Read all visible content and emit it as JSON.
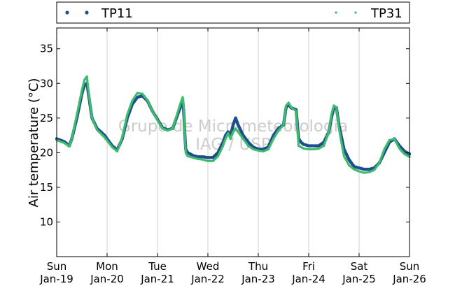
{
  "chart_data": {
    "type": "scatter",
    "title": "",
    "xlabel": "",
    "ylabel": "Air temperature (°C)",
    "ylim": [
      5,
      38
    ],
    "xlim_days": [
      0,
      7
    ],
    "yticks": [
      10,
      15,
      20,
      25,
      30,
      35
    ],
    "xticks": [
      {
        "day": "Sun",
        "date": "Jan-19"
      },
      {
        "day": "Mon",
        "date": "Jan-20"
      },
      {
        "day": "Tue",
        "date": "Jan-21"
      },
      {
        "day": "Wed",
        "date": "Jan-22"
      },
      {
        "day": "Thu",
        "date": "Jan-23"
      },
      {
        "day": "Fri",
        "date": "Jan-24"
      },
      {
        "day": "Sat",
        "date": "Jan-25"
      },
      {
        "day": "Sun",
        "date": "Jan-26"
      }
    ],
    "grid": "vertical",
    "legend_position": "top, above plot",
    "watermark": [
      "Grupo de Micrometeorologia",
      "IAG / USP"
    ],
    "series": [
      {
        "name": "TP11",
        "color": "#1f4e8c",
        "points": [
          [
            0.0,
            22.0
          ],
          [
            0.15,
            21.6
          ],
          [
            0.25,
            21.0
          ],
          [
            0.3,
            22.0
          ],
          [
            0.4,
            25.0
          ],
          [
            0.5,
            28.5
          ],
          [
            0.55,
            29.8
          ],
          [
            0.6,
            30.0
          ],
          [
            0.62,
            29.0
          ],
          [
            0.7,
            25.0
          ],
          [
            0.8,
            23.5
          ],
          [
            0.95,
            22.5
          ],
          [
            1.1,
            21.0
          ],
          [
            1.2,
            20.4
          ],
          [
            1.3,
            22.0
          ],
          [
            1.4,
            25.0
          ],
          [
            1.5,
            27.0
          ],
          [
            1.6,
            28.0
          ],
          [
            1.7,
            28.2
          ],
          [
            1.8,
            27.5
          ],
          [
            1.9,
            26.0
          ],
          [
            2.0,
            24.8
          ],
          [
            2.1,
            23.6
          ],
          [
            2.2,
            23.3
          ],
          [
            2.3,
            23.5
          ],
          [
            2.4,
            25.5
          ],
          [
            2.45,
            26.5
          ],
          [
            2.5,
            27.5
          ],
          [
            2.52,
            26.0
          ],
          [
            2.54,
            23.0
          ],
          [
            2.56,
            20.5
          ],
          [
            2.6,
            20.0
          ],
          [
            2.7,
            19.6
          ],
          [
            2.8,
            19.4
          ],
          [
            2.9,
            19.4
          ],
          [
            3.0,
            19.3
          ],
          [
            3.1,
            19.3
          ],
          [
            3.2,
            20.0
          ],
          [
            3.3,
            21.5
          ],
          [
            3.35,
            22.5
          ],
          [
            3.4,
            23.0
          ],
          [
            3.45,
            22.5
          ],
          [
            3.5,
            24.0
          ],
          [
            3.55,
            25.0
          ],
          [
            3.6,
            24.0
          ],
          [
            3.7,
            22.5
          ],
          [
            3.8,
            21.5
          ],
          [
            3.9,
            20.8
          ],
          [
            4.0,
            20.5
          ],
          [
            4.1,
            20.5
          ],
          [
            4.2,
            20.8
          ],
          [
            4.3,
            22.5
          ],
          [
            4.4,
            23.5
          ],
          [
            4.5,
            24.0
          ],
          [
            4.55,
            26.5
          ],
          [
            4.6,
            27.0
          ],
          [
            4.65,
            26.5
          ],
          [
            4.75,
            26.2
          ],
          [
            4.77,
            24.5
          ],
          [
            4.8,
            22.0
          ],
          [
            4.85,
            21.5
          ],
          [
            4.9,
            21.2
          ],
          [
            5.0,
            21.0
          ],
          [
            5.1,
            21.0
          ],
          [
            5.2,
            21.0
          ],
          [
            5.3,
            21.5
          ],
          [
            5.4,
            23.0
          ],
          [
            5.45,
            25.0
          ],
          [
            5.5,
            26.5
          ],
          [
            5.55,
            26.5
          ],
          [
            5.6,
            24.0
          ],
          [
            5.7,
            20.5
          ],
          [
            5.8,
            19.0
          ],
          [
            5.9,
            18.0
          ],
          [
            6.0,
            17.8
          ],
          [
            6.1,
            17.6
          ],
          [
            6.2,
            17.6
          ],
          [
            6.3,
            17.8
          ],
          [
            6.4,
            18.5
          ],
          [
            6.5,
            20.0
          ],
          [
            6.6,
            21.5
          ],
          [
            6.7,
            22.0
          ],
          [
            6.8,
            21.0
          ],
          [
            6.9,
            20.2
          ],
          [
            7.0,
            19.8
          ]
        ]
      },
      {
        "name": "TP31",
        "color": "#3dbb6e",
        "points": [
          [
            0.0,
            21.8
          ],
          [
            0.15,
            21.4
          ],
          [
            0.25,
            20.9
          ],
          [
            0.3,
            22.0
          ],
          [
            0.4,
            25.5
          ],
          [
            0.5,
            29.0
          ],
          [
            0.55,
            30.5
          ],
          [
            0.6,
            31.0
          ],
          [
            0.62,
            29.5
          ],
          [
            0.7,
            25.0
          ],
          [
            0.8,
            23.3
          ],
          [
            0.95,
            22.2
          ],
          [
            1.1,
            20.8
          ],
          [
            1.2,
            20.2
          ],
          [
            1.3,
            22.2
          ],
          [
            1.4,
            25.5
          ],
          [
            1.5,
            27.5
          ],
          [
            1.6,
            28.6
          ],
          [
            1.7,
            28.5
          ],
          [
            1.8,
            27.6
          ],
          [
            1.9,
            26.0
          ],
          [
            2.0,
            24.7
          ],
          [
            2.1,
            23.5
          ],
          [
            2.2,
            23.2
          ],
          [
            2.3,
            23.5
          ],
          [
            2.4,
            25.8
          ],
          [
            2.45,
            27.0
          ],
          [
            2.5,
            28.0
          ],
          [
            2.52,
            26.5
          ],
          [
            2.54,
            23.0
          ],
          [
            2.56,
            20.0
          ],
          [
            2.6,
            19.5
          ],
          [
            2.7,
            19.3
          ],
          [
            2.8,
            19.1
          ],
          [
            2.9,
            19.0
          ],
          [
            3.0,
            18.8
          ],
          [
            3.1,
            18.8
          ],
          [
            3.2,
            19.5
          ],
          [
            3.3,
            21.0
          ],
          [
            3.35,
            22.0
          ],
          [
            3.4,
            22.8
          ],
          [
            3.45,
            22.0
          ],
          [
            3.5,
            23.0
          ],
          [
            3.55,
            23.5
          ],
          [
            3.6,
            23.0
          ],
          [
            3.7,
            22.0
          ],
          [
            3.8,
            21.0
          ],
          [
            3.9,
            20.5
          ],
          [
            4.0,
            20.3
          ],
          [
            4.1,
            20.2
          ],
          [
            4.2,
            20.5
          ],
          [
            4.3,
            22.0
          ],
          [
            4.4,
            23.2
          ],
          [
            4.5,
            24.0
          ],
          [
            4.55,
            26.8
          ],
          [
            4.6,
            27.2
          ],
          [
            4.65,
            26.6
          ],
          [
            4.75,
            26.0
          ],
          [
            4.77,
            24.0
          ],
          [
            4.8,
            21.0
          ],
          [
            4.85,
            20.8
          ],
          [
            4.9,
            20.6
          ],
          [
            5.0,
            20.5
          ],
          [
            5.1,
            20.5
          ],
          [
            5.2,
            20.6
          ],
          [
            5.3,
            21.0
          ],
          [
            5.4,
            23.0
          ],
          [
            5.45,
            25.5
          ],
          [
            5.5,
            26.8
          ],
          [
            5.55,
            26.5
          ],
          [
            5.6,
            23.5
          ],
          [
            5.7,
            19.5
          ],
          [
            5.8,
            18.2
          ],
          [
            5.9,
            17.6
          ],
          [
            6.0,
            17.3
          ],
          [
            6.1,
            17.1
          ],
          [
            6.2,
            17.2
          ],
          [
            6.3,
            17.5
          ],
          [
            6.4,
            18.5
          ],
          [
            6.5,
            20.5
          ],
          [
            6.6,
            21.8
          ],
          [
            6.7,
            22.0
          ],
          [
            6.8,
            20.6
          ],
          [
            6.9,
            19.8
          ],
          [
            7.0,
            19.4
          ]
        ]
      }
    ]
  }
}
